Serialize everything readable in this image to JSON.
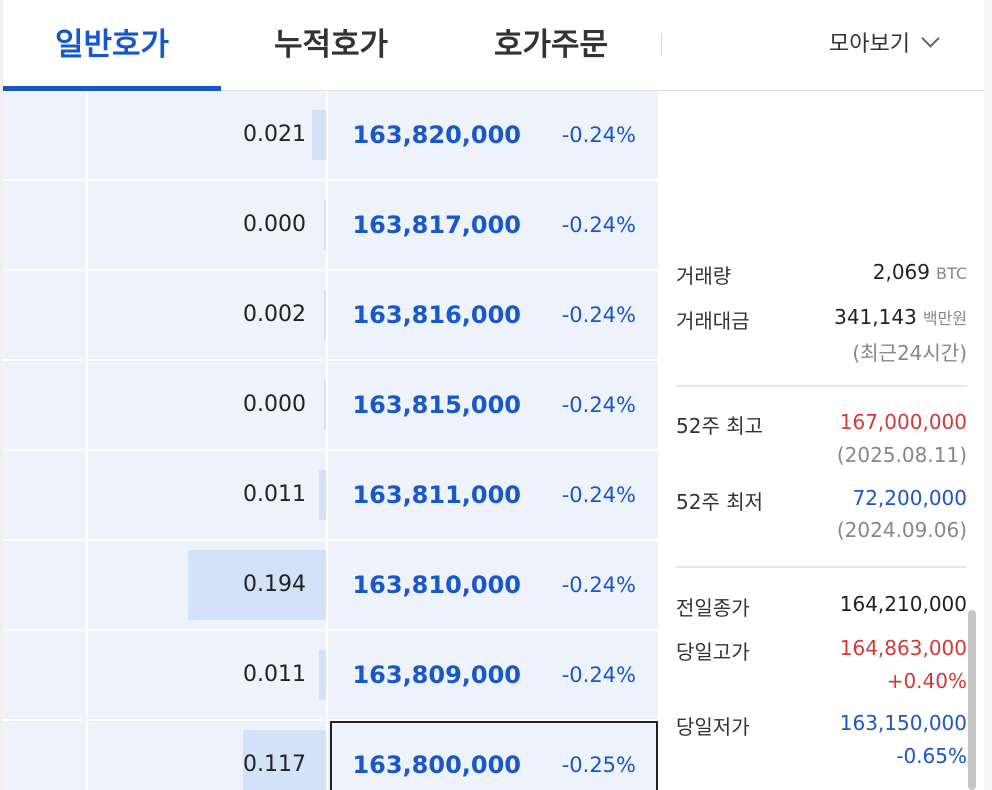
{
  "tabs": [
    {
      "label": "일반호가",
      "active": true
    },
    {
      "label": "누적호가",
      "active": false
    },
    {
      "label": "호가주문",
      "active": false
    }
  ],
  "view_all": "모아보기",
  "orderbook": {
    "rows": [
      {
        "qty": "0.021",
        "qty_fill": 0.06,
        "price": "163,820,000",
        "rate": "-0.24%"
      },
      {
        "qty": "0.000",
        "qty_fill": 0.01,
        "price": "163,817,000",
        "rate": "-0.24%"
      },
      {
        "qty": "0.002",
        "qty_fill": 0.01,
        "price": "163,816,000",
        "rate": "-0.24%"
      },
      {
        "qty": "0.000",
        "qty_fill": 0.01,
        "price": "163,815,000",
        "rate": "-0.24%"
      },
      {
        "qty": "0.011",
        "qty_fill": 0.03,
        "price": "163,811,000",
        "rate": "-0.24%"
      },
      {
        "qty": "0.194",
        "qty_fill": 0.58,
        "price": "163,810,000",
        "rate": "-0.24%"
      },
      {
        "qty": "0.011",
        "qty_fill": 0.03,
        "price": "163,809,000",
        "rate": "-0.24%"
      },
      {
        "qty": "0.117",
        "qty_fill": 0.35,
        "price": "163,800,000",
        "rate": "-0.25%",
        "current": true
      }
    ]
  },
  "info": {
    "volume_label": "거래량",
    "volume_value": "2,069",
    "volume_unit": "BTC",
    "amount_label": "거래대금",
    "amount_value": "341,143",
    "amount_unit": "백만원",
    "amount_note": "(최근24시간)",
    "high52_label": "52주 최고",
    "high52_value": "167,000,000",
    "high52_date": "(2025.08.11)",
    "low52_label": "52주 최저",
    "low52_value": "72,200,000",
    "low52_date": "(2024.09.06)",
    "prev_close_label": "전일종가",
    "prev_close_value": "164,210,000",
    "day_high_label": "당일고가",
    "day_high_value": "164,863,000",
    "day_high_rate": "+0.40%",
    "day_low_label": "당일저가",
    "day_low_value": "163,150,000",
    "day_low_rate": "-0.65%"
  },
  "colors": {
    "accent": "#1558c9",
    "ask_bg": "#edf2fb",
    "qty_bar": "#d3e2f9",
    "up": "#d23a3a",
    "down": "#1a57c7"
  }
}
